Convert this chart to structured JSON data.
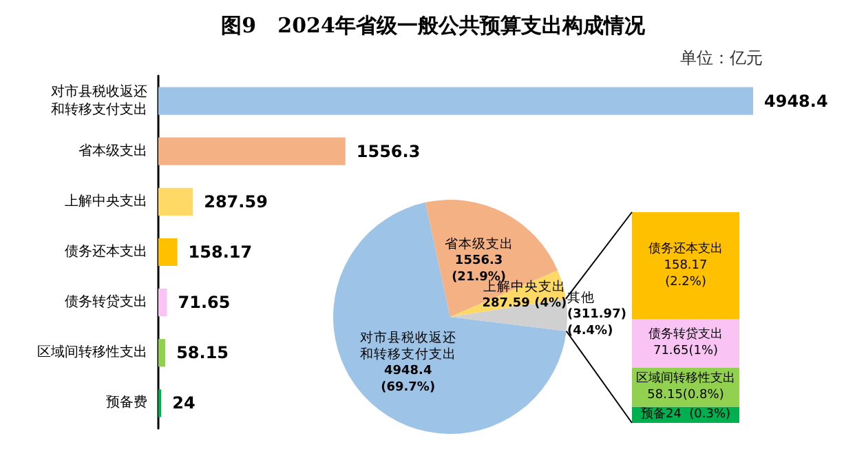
{
  "chart_data": [
    {
      "type": "bar",
      "orientation": "horizontal",
      "title": "图9   2024年省级一般公共预算支出构成情况",
      "annotations": [
        "单位：亿元"
      ],
      "categories": [
        "对市县税收返还和转移支付支出",
        "省本级支出",
        "上解中央支出",
        "债务还本支出",
        "债务转贷支出",
        "区域间转移性支出",
        "预备费"
      ],
      "values": [
        4948.4,
        1556.3,
        287.59,
        158.17,
        71.65,
        58.15,
        24
      ],
      "colors": [
        "#9dc3e6",
        "#f4b183",
        "#ffd966",
        "#ffc000",
        "#f9c3f3",
        "#92d050",
        "#00b050"
      ],
      "data_labels": true
    },
    {
      "type": "pie",
      "categories": [
        "对市县税收返还和转移支付支出",
        "省本级支出",
        "上解中央支出",
        "其他"
      ],
      "values": [
        4948.4,
        1556.3,
        287.59,
        311.97
      ],
      "colors": [
        "#9dc3e6",
        "#f4b183",
        "#ffd966",
        "#d0d0d0"
      ],
      "value_labels": [
        "4948.4\n(69.7%)",
        "1556.3\n(21.9%)",
        "287.59 (4%)",
        "(311.97)\n(4.4%)"
      ]
    },
    {
      "type": "bar",
      "stacked": true,
      "categories": [
        null
      ],
      "series": [
        {
          "color": "#00b050",
          "values": [
            24
          ],
          "value_labels": [
            "预备24  (0.3%)"
          ]
        },
        {
          "color": "#92d050",
          "values": [
            58.15
          ],
          "value_labels": [
            "区域间转移性支出\n58.15(0.8%)"
          ]
        },
        {
          "color": "#f9c3f3",
          "values": [
            71.65
          ],
          "value_labels": [
            "债务转贷支出\n71.65(1%)"
          ]
        },
        {
          "color": "#ffc000",
          "values": [
            158.17
          ],
          "value_labels": [
            "债务还本支出\n158.17\n(2.2%)"
          ]
        }
      ]
    }
  ]
}
